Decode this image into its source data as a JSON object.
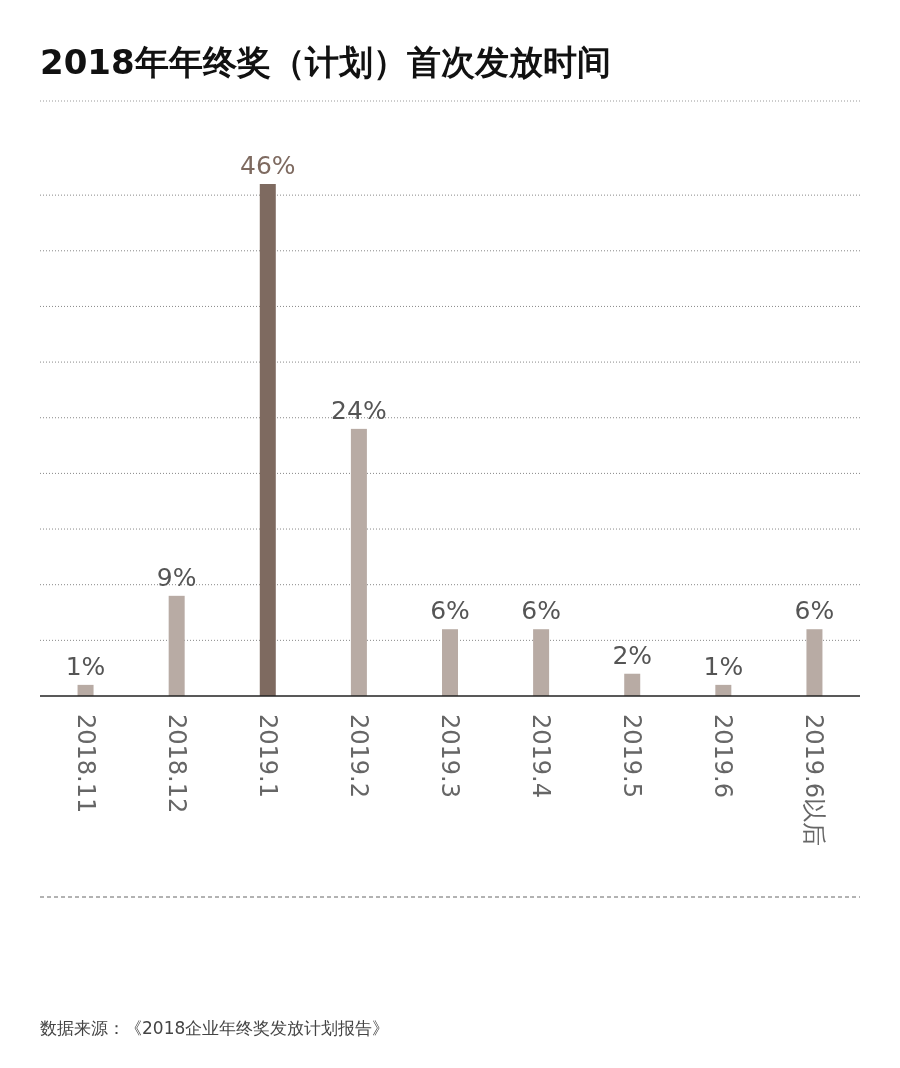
{
  "chart_data": {
    "type": "bar",
    "title": "2018年年终奖（计划）首次发放时间",
    "categories": [
      "2018.11",
      "2018.12",
      "2019.1",
      "2019.2",
      "2019.3",
      "2019.4",
      "2019.5",
      "2019.6",
      "2019.6以后"
    ],
    "values": [
      1,
      9,
      46,
      24,
      6,
      6,
      2,
      1,
      6
    ],
    "colors": [
      "#b8aba4",
      "#b8aba4",
      "#7e6a60",
      "#b8aba4",
      "#b8aba4",
      "#b8aba4",
      "#b8aba4",
      "#b8aba4",
      "#b8aba4"
    ],
    "value_labels": [
      "1%",
      "9%",
      "46%",
      "24%",
      "6%",
      "6%",
      "2%",
      "1%",
      "6%"
    ],
    "ylim": [
      0,
      46
    ],
    "yticks": [
      {
        "value": 0,
        "label": null
      },
      {
        "value": 5,
        "label": null
      },
      {
        "value": 10,
        "label": null
      },
      {
        "value": 15,
        "label": null
      },
      {
        "value": 20,
        "label": null
      },
      {
        "value": 25,
        "label": null
      },
      {
        "value": 30,
        "label": null
      },
      {
        "value": 35,
        "label": null
      },
      {
        "value": 40,
        "label": null
      },
      {
        "value": 45,
        "label": null
      }
    ],
    "grid": "y",
    "tick_labels": "x",
    "annotations": [
      "数据来源：《2018企业年终奖发放计划报告》"
    ]
  }
}
